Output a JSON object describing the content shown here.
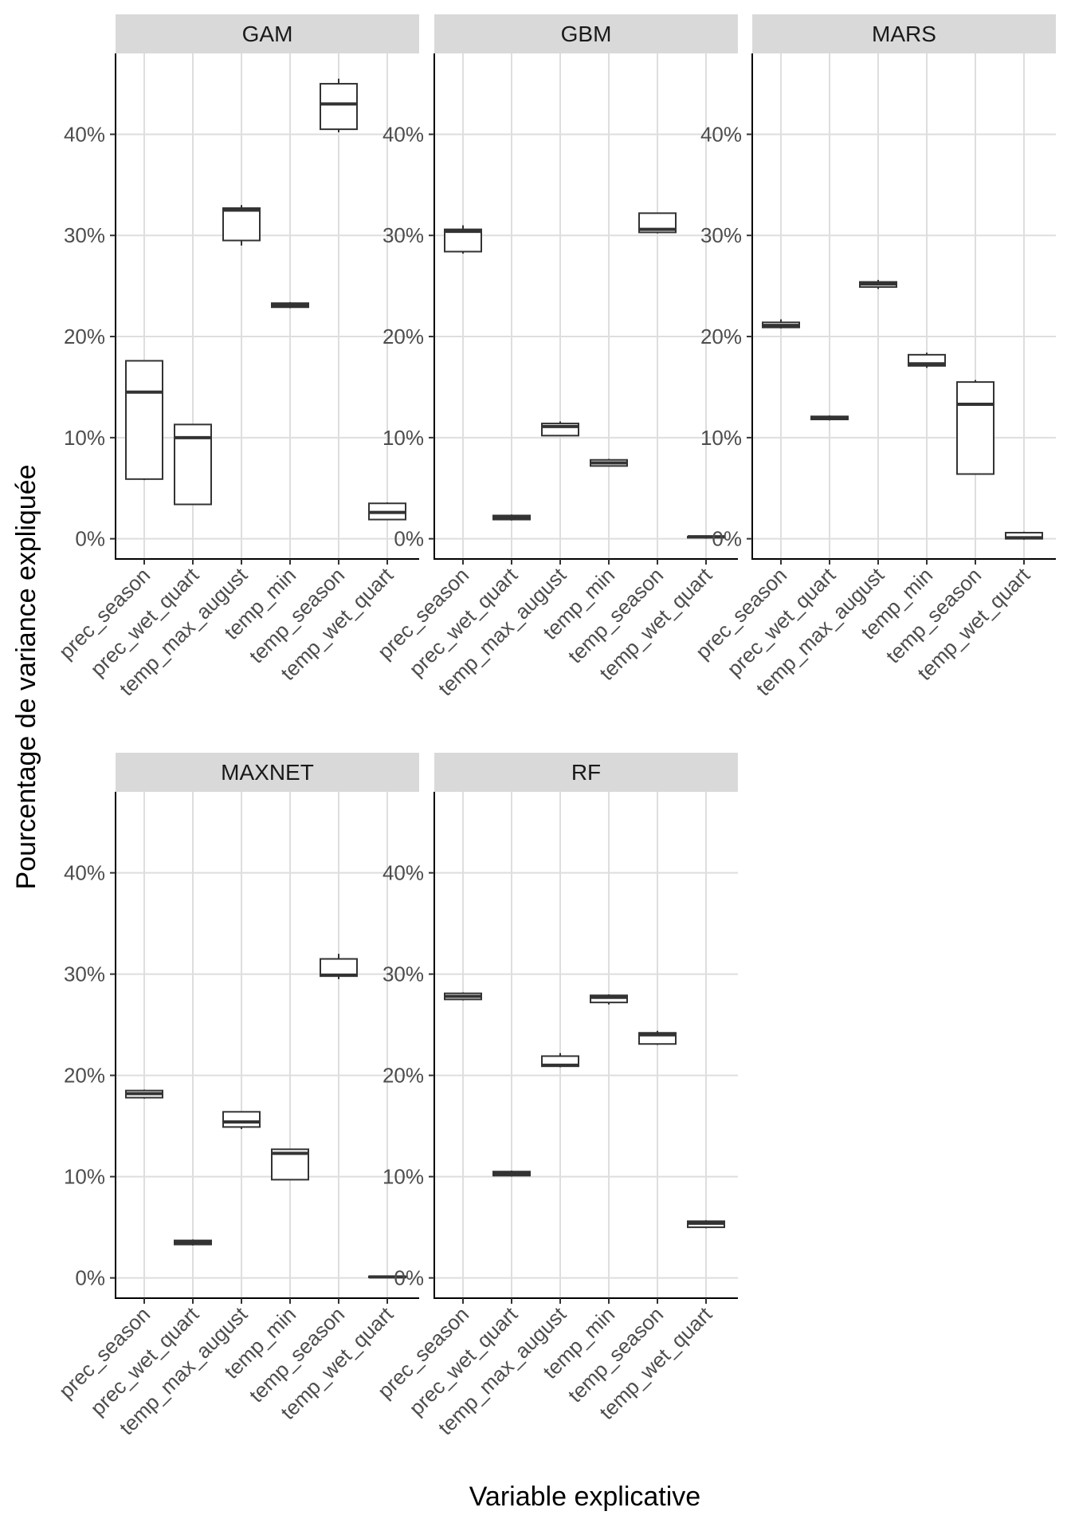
{
  "chart_data": {
    "type": "boxplot",
    "xlabel": "Variable explicative",
    "ylabel": "Pourcentage de variance expliquée",
    "ylim": [
      -2,
      48
    ],
    "y_ticks": [
      0,
      10,
      20,
      30,
      40
    ],
    "y_tick_labels": [
      "0%",
      "10%",
      "20%",
      "30%",
      "40%"
    ],
    "categories": [
      "prec_season",
      "prec_wet_quart",
      "temp_max_august",
      "temp_min",
      "temp_season",
      "temp_wet_quart"
    ],
    "panels": [
      {
        "name": "GAM",
        "boxes": [
          {
            "min": 5.8,
            "q1": 5.9,
            "median": 14.5,
            "q3": 17.6,
            "max": 17.6
          },
          {
            "min": 3.4,
            "q1": 3.4,
            "median": 10.0,
            "q3": 11.3,
            "max": 11.3
          },
          {
            "min": 29.0,
            "q1": 29.5,
            "median": 32.5,
            "q3": 32.7,
            "max": 33.0
          },
          {
            "min": 22.8,
            "q1": 22.9,
            "median": 23.1,
            "q3": 23.3,
            "max": 23.4
          },
          {
            "min": 40.2,
            "q1": 40.5,
            "median": 43.0,
            "q3": 45.0,
            "max": 45.5
          },
          {
            "min": 1.9,
            "q1": 1.9,
            "median": 2.6,
            "q3": 3.5,
            "max": 3.6
          }
        ]
      },
      {
        "name": "GBM",
        "boxes": [
          {
            "min": 28.2,
            "q1": 28.4,
            "median": 30.4,
            "q3": 30.6,
            "max": 31.0
          },
          {
            "min": 1.8,
            "q1": 1.9,
            "median": 2.1,
            "q3": 2.3,
            "max": 2.4
          },
          {
            "min": 10.2,
            "q1": 10.2,
            "median": 11.1,
            "q3": 11.4,
            "max": 11.6
          },
          {
            "min": 7.2,
            "q1": 7.2,
            "median": 7.5,
            "q3": 7.8,
            "max": 7.9
          },
          {
            "min": 30.2,
            "q1": 30.3,
            "median": 30.6,
            "q3": 32.2,
            "max": 32.2
          },
          {
            "min": 0.0,
            "q1": 0.1,
            "median": 0.2,
            "q3": 0.2,
            "max": 0.3
          }
        ]
      },
      {
        "name": "MARS",
        "boxes": [
          {
            "min": 20.8,
            "q1": 20.9,
            "median": 21.1,
            "q3": 21.4,
            "max": 21.7
          },
          {
            "min": 11.7,
            "q1": 11.8,
            "median": 12.0,
            "q3": 12.1,
            "max": 12.2
          },
          {
            "min": 24.7,
            "q1": 24.9,
            "median": 25.2,
            "q3": 25.4,
            "max": 25.6
          },
          {
            "min": 16.9,
            "q1": 17.1,
            "median": 17.3,
            "q3": 18.2,
            "max": 18.4
          },
          {
            "min": 6.4,
            "q1": 6.4,
            "median": 13.3,
            "q3": 15.5,
            "max": 15.7
          },
          {
            "min": -0.1,
            "q1": 0.0,
            "median": 0.1,
            "q3": 0.6,
            "max": 0.7
          }
        ]
      },
      {
        "name": "MAXNET",
        "boxes": [
          {
            "min": 17.7,
            "q1": 17.8,
            "median": 18.2,
            "q3": 18.5,
            "max": 18.6
          },
          {
            "min": 3.2,
            "q1": 3.3,
            "median": 3.5,
            "q3": 3.7,
            "max": 3.8
          },
          {
            "min": 14.7,
            "q1": 14.9,
            "median": 15.4,
            "q3": 16.4,
            "max": 16.4
          },
          {
            "min": 9.7,
            "q1": 9.7,
            "median": 12.3,
            "q3": 12.7,
            "max": 12.7
          },
          {
            "min": 29.5,
            "q1": 29.8,
            "median": 29.9,
            "q3": 31.5,
            "max": 32.0
          },
          {
            "min": 0.0,
            "q1": 0.05,
            "median": 0.1,
            "q3": 0.15,
            "max": 0.2
          }
        ]
      },
      {
        "name": "RF",
        "boxes": [
          {
            "min": 27.4,
            "q1": 27.5,
            "median": 27.8,
            "q3": 28.1,
            "max": 28.2
          },
          {
            "min": 10.0,
            "q1": 10.1,
            "median": 10.3,
            "q3": 10.5,
            "max": 10.6
          },
          {
            "min": 20.8,
            "q1": 20.9,
            "median": 21.0,
            "q3": 21.9,
            "max": 22.2
          },
          {
            "min": 27.0,
            "q1": 27.2,
            "median": 27.7,
            "q3": 27.9,
            "max": 28.0
          },
          {
            "min": 23.0,
            "q1": 23.1,
            "median": 24.0,
            "q3": 24.2,
            "max": 24.4
          },
          {
            "min": 4.9,
            "q1": 5.0,
            "median": 5.4,
            "q3": 5.6,
            "max": 5.7
          }
        ]
      }
    ]
  }
}
